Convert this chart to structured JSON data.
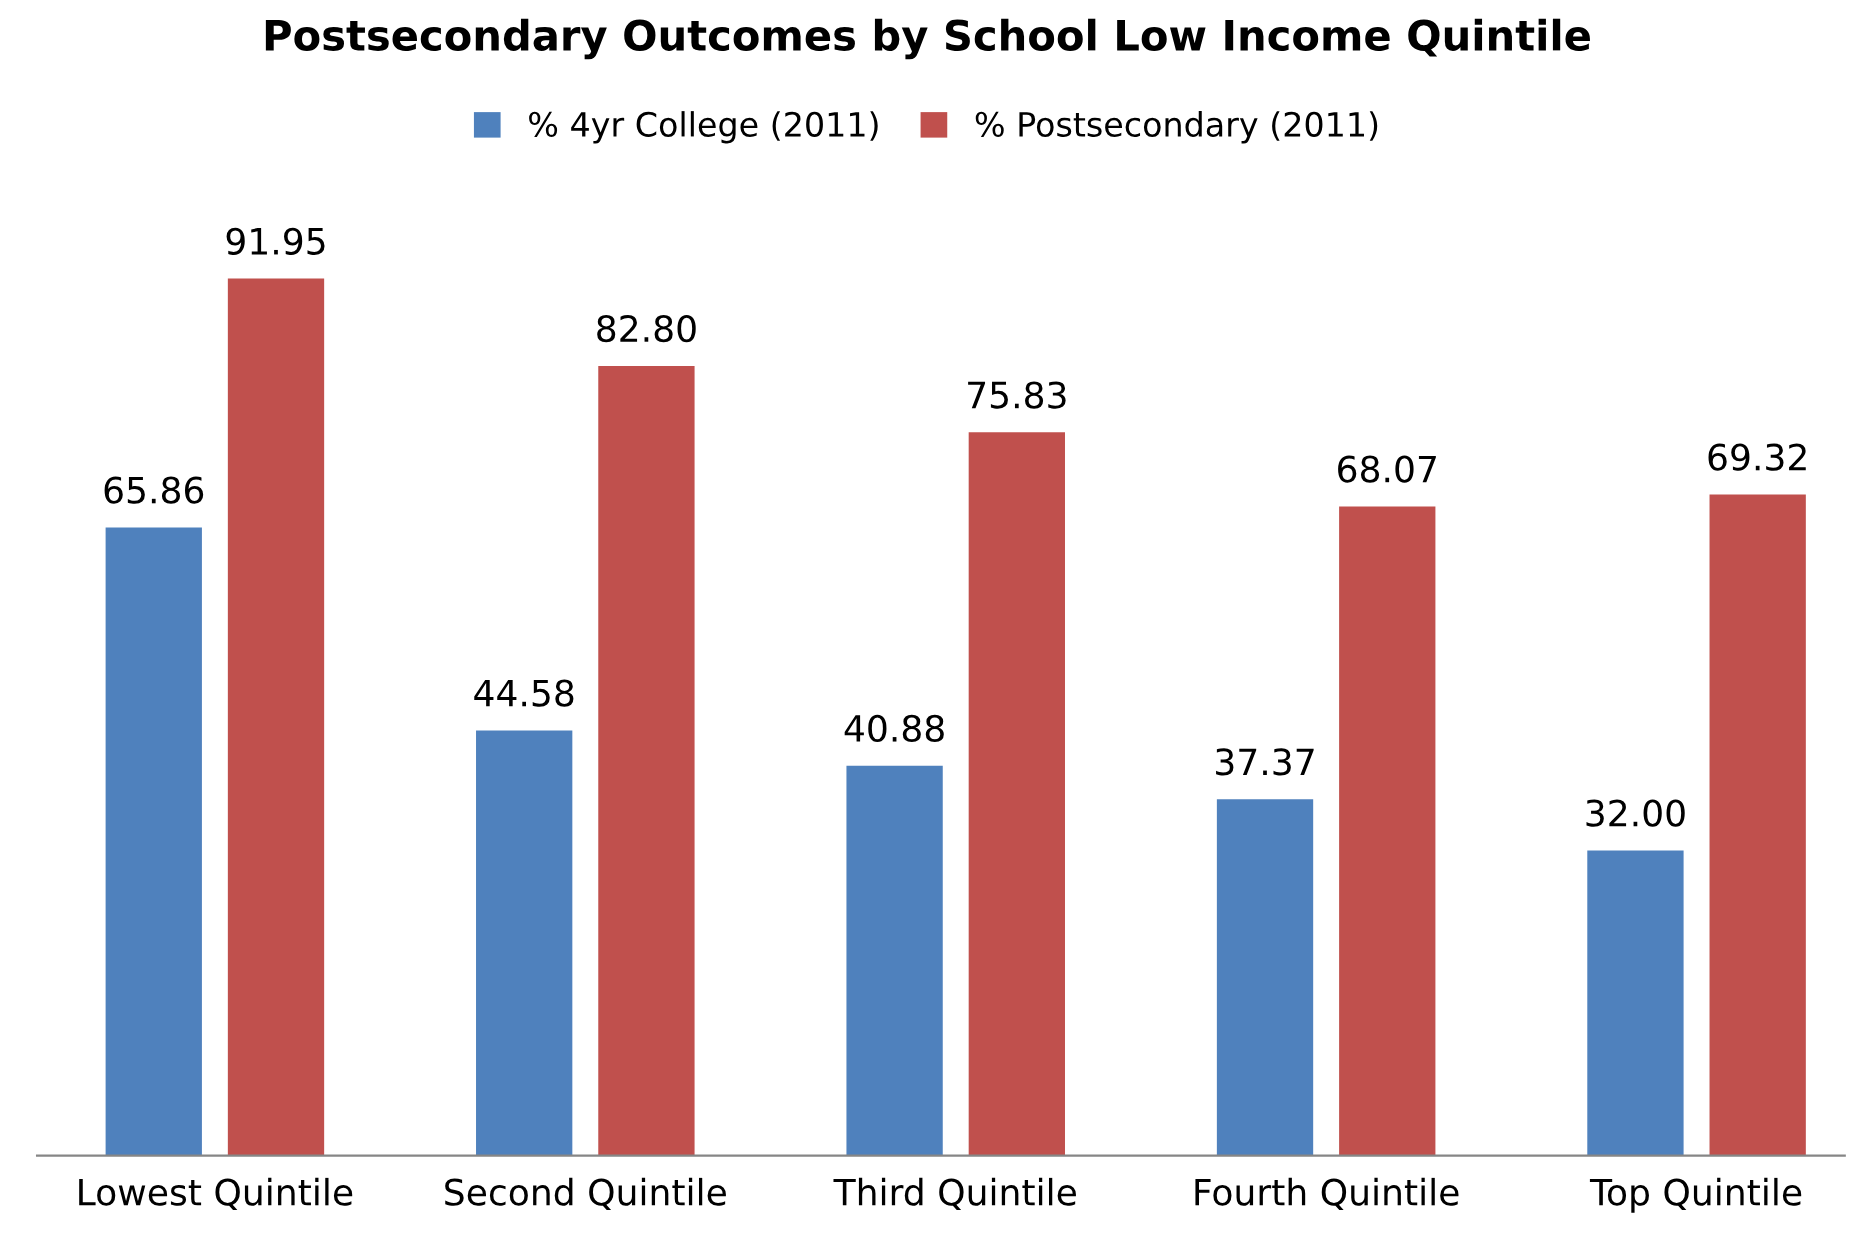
{
  "chart_data": {
    "type": "bar",
    "title": "Postsecondary Outcomes by School Low Income Quintile",
    "categories": [
      "Lowest Quintile",
      "Second Quintile",
      "Third Quintile",
      "Fourth Quintile",
      "Top Quintile"
    ],
    "series": [
      {
        "name": "% 4yr College (2011)",
        "color": "#4f81bd",
        "values": [
          65.86,
          44.58,
          40.88,
          37.37,
          32.0
        ],
        "value_labels": [
          "65.86",
          "44.58",
          "40.88",
          "37.37",
          "32.00"
        ]
      },
      {
        "name": "% Postsecondary (2011)",
        "color": "#c0504d",
        "values": [
          91.95,
          82.8,
          75.83,
          68.07,
          69.32
        ],
        "value_labels": [
          "91.95",
          "82.80",
          "75.83",
          "68.07",
          "69.32"
        ]
      }
    ],
    "legend": "top",
    "grid": false
  }
}
